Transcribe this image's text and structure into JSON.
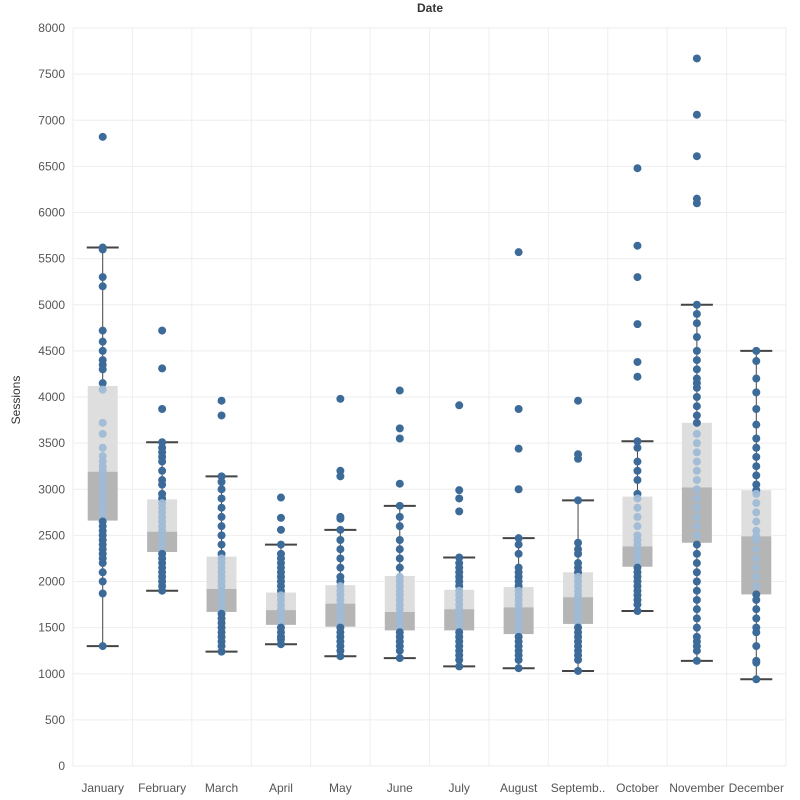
{
  "chart_data": {
    "type": "box",
    "title": "Date",
    "xlabel": "",
    "ylabel": "Sessions",
    "ylim": [
      0,
      8000
    ],
    "yticks": [
      0,
      500,
      1000,
      1500,
      2000,
      2500,
      3000,
      3500,
      4000,
      4500,
      5000,
      5500,
      6000,
      6500,
      7000,
      7500,
      8000
    ],
    "grid": true,
    "colors": {
      "point": "#3d6b99",
      "point_light": "#9fbbd6",
      "box_upper": "#dedede",
      "box_lower": "#b5b5b5",
      "whisker": "#444444",
      "grid": "#eeeeee"
    },
    "categories": [
      "January",
      "February",
      "March",
      "April",
      "May",
      "June",
      "July",
      "August",
      "Septemb..",
      "October",
      "November",
      "December"
    ],
    "boxes": [
      {
        "whisker_low": 1300,
        "q1": 2660,
        "median": 3190,
        "q3": 4120,
        "whisker_high": 5620
      },
      {
        "whisker_low": 1900,
        "q1": 2320,
        "median": 2540,
        "q3": 2890,
        "whisker_high": 3510
      },
      {
        "whisker_low": 1240,
        "q1": 1670,
        "median": 1920,
        "q3": 2270,
        "whisker_high": 3140
      },
      {
        "whisker_low": 1320,
        "q1": 1530,
        "median": 1690,
        "q3": 1880,
        "whisker_high": 2400
      },
      {
        "whisker_low": 1190,
        "q1": 1510,
        "median": 1760,
        "q3": 1960,
        "whisker_high": 2560
      },
      {
        "whisker_low": 1170,
        "q1": 1470,
        "median": 1670,
        "q3": 2060,
        "whisker_high": 2820
      },
      {
        "whisker_low": 1080,
        "q1": 1470,
        "median": 1700,
        "q3": 1910,
        "whisker_high": 2260
      },
      {
        "whisker_low": 1060,
        "q1": 1430,
        "median": 1720,
        "q3": 1940,
        "whisker_high": 2470
      },
      {
        "whisker_low": 1030,
        "q1": 1540,
        "median": 1830,
        "q3": 2100,
        "whisker_high": 2880
      },
      {
        "whisker_low": 1680,
        "q1": 2160,
        "median": 2380,
        "q3": 2920,
        "whisker_high": 3520
      },
      {
        "whisker_low": 1140,
        "q1": 2420,
        "median": 3020,
        "q3": 3720,
        "whisker_high": 5000
      },
      {
        "whisker_low": 940,
        "q1": 1860,
        "median": 2490,
        "q3": 2990,
        "whisker_high": 4500
      }
    ],
    "points": [
      [
        6820,
        5620,
        5600,
        5300,
        5200,
        4720,
        4600,
        4500,
        4400,
        4350,
        4300,
        4150,
        4080,
        3720,
        3600,
        3450,
        3360,
        3300,
        3250,
        3200,
        3150,
        3100,
        3050,
        3000,
        2950,
        2900,
        2850,
        2800,
        2760,
        2700,
        2650,
        2600,
        2550,
        2500,
        2450,
        2400,
        2350,
        2300,
        2250,
        2200,
        2100,
        2000,
        1870,
        1300
      ],
      [
        4720,
        4310,
        3870,
        3510,
        3450,
        3400,
        3350,
        3300,
        3200,
        3100,
        3050,
        2950,
        2900,
        2850,
        2800,
        2750,
        2700,
        2650,
        2600,
        2550,
        2500,
        2450,
        2400,
        2350,
        2300,
        2250,
        2200,
        2150,
        2100,
        2050,
        2000,
        1950,
        1900
      ],
      [
        3960,
        3800,
        3140,
        3080,
        3000,
        2900,
        2800,
        2700,
        2600,
        2500,
        2400,
        2300,
        2250,
        2200,
        2150,
        2100,
        2050,
        2000,
        1950,
        1900,
        1850,
        1800,
        1750,
        1700,
        1650,
        1600,
        1550,
        1500,
        1450,
        1400,
        1350,
        1300,
        1240
      ],
      [
        2910,
        2690,
        2560,
        2400,
        2300,
        2250,
        2200,
        2150,
        2100,
        2050,
        2000,
        1950,
        1900,
        1850,
        1800,
        1750,
        1700,
        1650,
        1600,
        1550,
        1500,
        1450,
        1400,
        1370,
        1320
      ],
      [
        3980,
        3200,
        3140,
        2700,
        2680,
        2560,
        2450,
        2350,
        2250,
        2150,
        2050,
        2000,
        1950,
        1900,
        1850,
        1800,
        1750,
        1700,
        1650,
        1600,
        1550,
        1500,
        1450,
        1400,
        1350,
        1300,
        1250,
        1190
      ],
      [
        4070,
        3660,
        3550,
        3060,
        2820,
        2700,
        2600,
        2450,
        2350,
        2250,
        2150,
        2050,
        2000,
        1950,
        1900,
        1850,
        1800,
        1750,
        1700,
        1650,
        1600,
        1550,
        1500,
        1450,
        1400,
        1350,
        1300,
        1250,
        1170
      ],
      [
        3910,
        2990,
        2900,
        2760,
        2260,
        2200,
        2150,
        2100,
        2050,
        2000,
        1950,
        1900,
        1850,
        1800,
        1750,
        1700,
        1650,
        1600,
        1550,
        1500,
        1450,
        1400,
        1350,
        1300,
        1250,
        1200,
        1150,
        1080
      ],
      [
        5570,
        3870,
        3440,
        3000,
        2470,
        2400,
        2300,
        2150,
        2100,
        2050,
        2000,
        1950,
        1900,
        1850,
        1800,
        1750,
        1700,
        1650,
        1600,
        1550,
        1500,
        1450,
        1400,
        1350,
        1300,
        1250,
        1200,
        1150,
        1060
      ],
      [
        3960,
        3380,
        3330,
        2880,
        2420,
        2350,
        2300,
        2200,
        2150,
        2100,
        2050,
        2000,
        1950,
        1900,
        1850,
        1800,
        1750,
        1700,
        1650,
        1600,
        1550,
        1500,
        1450,
        1400,
        1350,
        1300,
        1250,
        1200,
        1150,
        1030
      ],
      [
        6480,
        5640,
        5300,
        4790,
        4380,
        4220,
        3520,
        3450,
        3300,
        3200,
        3100,
        2950,
        2900,
        2800,
        2700,
        2600,
        2500,
        2450,
        2400,
        2350,
        2300,
        2250,
        2200,
        2150,
        2100,
        2050,
        2000,
        1950,
        1900,
        1850,
        1800,
        1750,
        1680
      ],
      [
        7670,
        7060,
        6610,
        6150,
        6100,
        5000,
        4900,
        4800,
        4650,
        4500,
        4400,
        4300,
        4200,
        4150,
        4100,
        4000,
        3900,
        3800,
        3720,
        3600,
        3500,
        3400,
        3300,
        3200,
        3100,
        3000,
        2900,
        2800,
        2700,
        2600,
        2500,
        2400,
        2300,
        2200,
        2100,
        2000,
        1900,
        1800,
        1700,
        1600,
        1500,
        1400,
        1350,
        1300,
        1250,
        1140
      ],
      [
        4500,
        4390,
        4200,
        4050,
        3870,
        3700,
        3550,
        3450,
        3350,
        3250,
        3150,
        3050,
        2990,
        2950,
        2850,
        2750,
        2650,
        2550,
        2490,
        2450,
        2350,
        2250,
        2150,
        2050,
        1950,
        1860,
        1800,
        1700,
        1600,
        1500,
        1450,
        1300,
        1140,
        1120,
        940
      ]
    ]
  }
}
